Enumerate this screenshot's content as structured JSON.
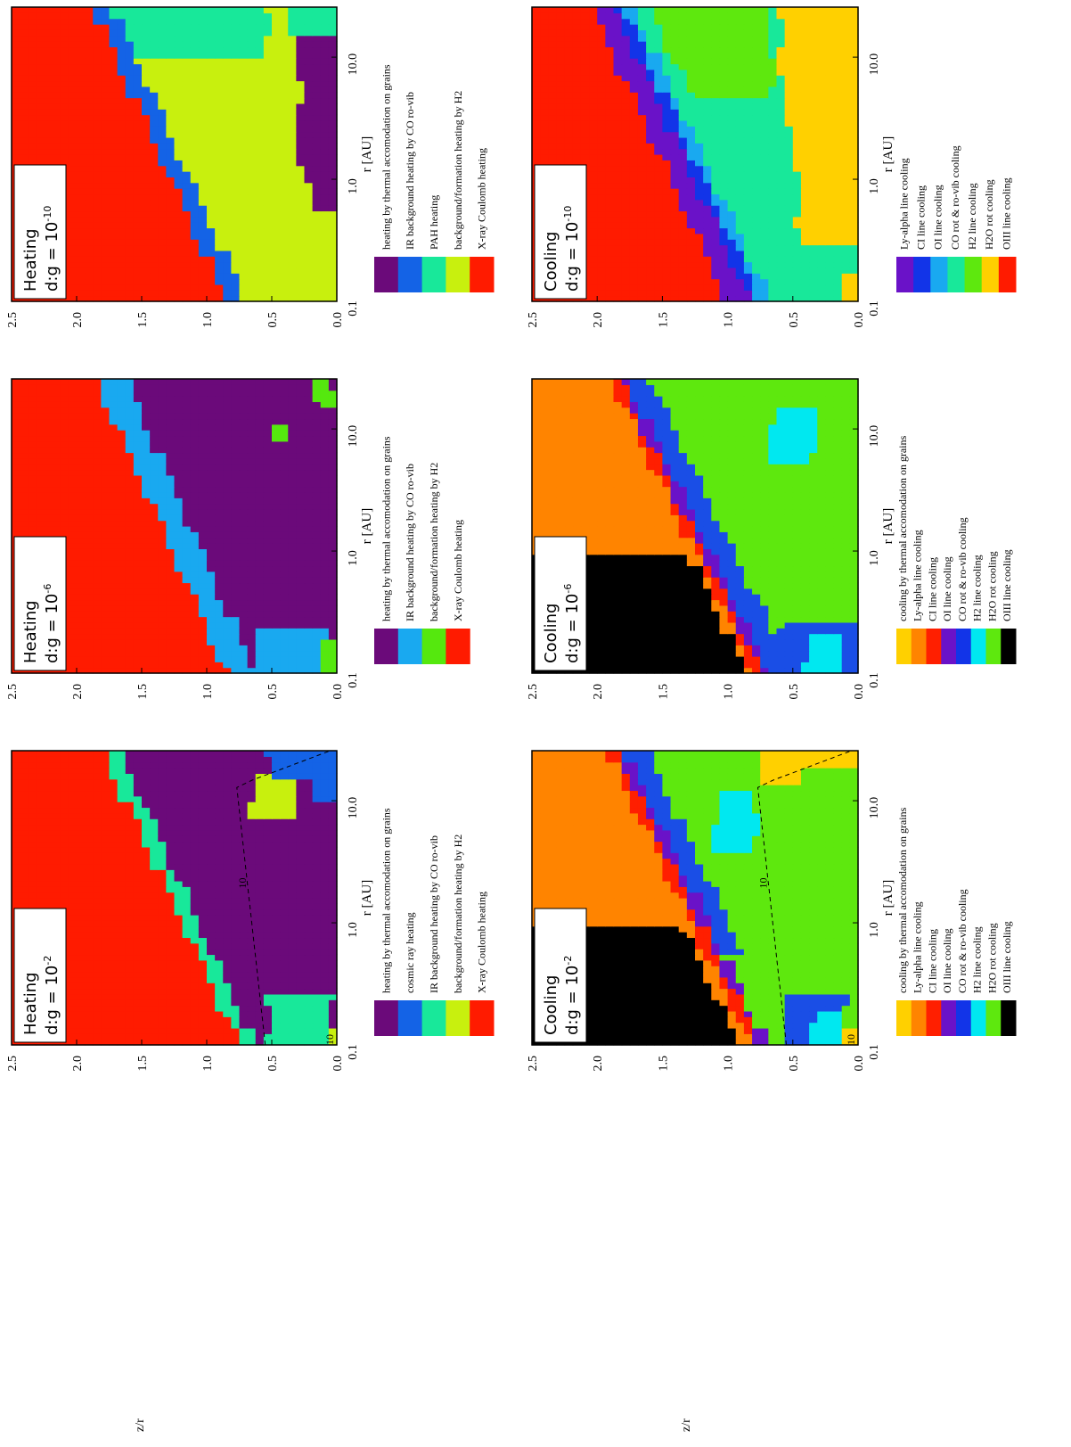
{
  "page": {
    "y_axis_label": "z/r",
    "x_axis_label": "r [AU]"
  },
  "palettes": {
    "heating": {
      "grain": "#6b0a7a",
      "cosmic": "#1463e6",
      "ir": "#18e89a",
      "bg": "#c8f00e",
      "xray": "#ff1b00",
      "irb": "#19a9f0",
      "bgg": "#55e80e"
    },
    "cooling": {
      "grain": "#ffd000",
      "lya": "#ff8400",
      "ci": "#ff1f00",
      "oi": "#6a12c8",
      "co": "#1234e8",
      "h2": "#00e8f0",
      "h2o": "#5ee80e",
      "oiii": "#000000",
      "cob": "#1a4ee6"
    }
  },
  "panels": [
    {
      "id": "heat-1e-2",
      "title_line1": "Heating",
      "title_line2": "d:g = 10",
      "exponent": "-2",
      "y_ticks": [
        "2.5",
        "2.0",
        "1.5",
        "1.0",
        "0.5",
        "0.0"
      ],
      "x_ticks": [
        "0.1",
        "1.0",
        "10.0"
      ],
      "contour_label": "10",
      "contour_label2": "10",
      "legend": [
        {
          "color": "#6b0a7a",
          "label": "heating by thermal accomodation on grains"
        },
        {
          "color": "#1463e6",
          "label": "cosmic ray heating"
        },
        {
          "color": "#18e89a",
          "label": "IR background heating by CO ro-vib"
        },
        {
          "color": "#c8f00e",
          "label": "background/formation heating by H2"
        },
        {
          "color": "#ff1b00",
          "label": "X-ray Coulomb heating"
        }
      ]
    },
    {
      "id": "heat-1e-6",
      "title_line1": "Heating",
      "title_line2": "d:g = 10",
      "exponent": "-6",
      "y_ticks": [
        "2.5",
        "2.0",
        "1.5",
        "1.0",
        "0.5",
        "0.0"
      ],
      "x_ticks": [
        "0.1",
        "1.0",
        "10.0"
      ],
      "legend": [
        {
          "color": "#6b0a7a",
          "label": "heating by thermal accomodation on grains"
        },
        {
          "color": "#19a9f0",
          "label": "IR background heating by CO ro-vib"
        },
        {
          "color": "#55e80e",
          "label": "background/formation heating by H2"
        },
        {
          "color": "#ff1b00",
          "label": "X-ray Coulomb heating"
        }
      ]
    },
    {
      "id": "heat-1e-10",
      "title_line1": "Heating",
      "title_line2": "d:g = 10",
      "exponent": "-10",
      "y_ticks": [
        "2.5",
        "2.0",
        "1.5",
        "1.0",
        "0.5",
        "0.0"
      ],
      "x_ticks": [
        "0.1",
        "1.0",
        "10.0"
      ],
      "legend": [
        {
          "color": "#6b0a7a",
          "label": "heating by thermal accomodation on grains"
        },
        {
          "color": "#1463e6",
          "label": "IR background heating by CO ro-vib"
        },
        {
          "color": "#18e89a",
          "label": "PAH heating"
        },
        {
          "color": "#c8f00e",
          "label": "background/formation heating by H2"
        },
        {
          "color": "#ff1b00",
          "label": "X-ray Coulomb heating"
        }
      ]
    },
    {
      "id": "cool-1e-2",
      "title_line1": "Cooling",
      "title_line2": "d:g = 10",
      "exponent": "-2",
      "y_ticks": [
        "2.5",
        "2.0",
        "1.5",
        "1.0",
        "0.5",
        "0.0"
      ],
      "x_ticks": [
        "0.1",
        "1.0",
        "10.0"
      ],
      "contour_label": "10",
      "contour_label2": "10",
      "legend": [
        {
          "color": "#ffd000",
          "label": "cooling by thermal accomodation on grains"
        },
        {
          "color": "#ff8400",
          "label": "Ly-alpha line cooling"
        },
        {
          "color": "#ff1f00",
          "label": "CI line cooling"
        },
        {
          "color": "#6a12c8",
          "label": "OI line cooling"
        },
        {
          "color": "#1234e8",
          "label": "CO rot & ro-vib cooling"
        },
        {
          "color": "#00e8f0",
          "label": "H2 line cooling"
        },
        {
          "color": "#5ee80e",
          "label": "H2O rot cooling"
        },
        {
          "color": "#000000",
          "label": "OIII line cooling"
        }
      ]
    },
    {
      "id": "cool-1e-6",
      "title_line1": "Cooling",
      "title_line2": "d:g = 10",
      "exponent": "-6",
      "y_ticks": [
        "2.5",
        "2.0",
        "1.5",
        "1.0",
        "0.5",
        "0.0"
      ],
      "x_ticks": [
        "0.1",
        "1.0",
        "10.0"
      ],
      "legend": [
        {
          "color": "#ffd000",
          "label": "cooling by thermal accomodation on grains"
        },
        {
          "color": "#ff8400",
          "label": "Ly-alpha line cooling"
        },
        {
          "color": "#ff1f00",
          "label": "CI line cooling"
        },
        {
          "color": "#6a12c8",
          "label": "OI line cooling"
        },
        {
          "color": "#1234e8",
          "label": "CO rot & ro-vib cooling"
        },
        {
          "color": "#00e8f0",
          "label": "H2 line cooling"
        },
        {
          "color": "#5ee80e",
          "label": "H2O rot cooling"
        },
        {
          "color": "#000000",
          "label": "OIII line cooling"
        }
      ]
    },
    {
      "id": "cool-1e-10",
      "title_line1": "Cooling",
      "title_line2": "d:g = 10",
      "exponent": "-10",
      "y_ticks": [
        "2.5",
        "2.0",
        "1.5",
        "1.0",
        "0.5",
        "0.0"
      ],
      "x_ticks": [
        "0.1",
        "1.0",
        "10.0"
      ],
      "legend": [
        {
          "color": "#6a12c8",
          "label": "Ly-alpha line cooling"
        },
        {
          "color": "#1234e8",
          "label": "CI line cooling"
        },
        {
          "color": "#19a9f0",
          "label": "OI line cooling"
        },
        {
          "color": "#18e89a",
          "label": "CO rot & ro-vib cooling"
        },
        {
          "color": "#5ee80e",
          "label": "H2 line cooling"
        },
        {
          "color": "#ffd000",
          "label": "H2O rot cooling"
        },
        {
          "color": "#ff1b00",
          "label": "OIII line cooling"
        }
      ]
    }
  ],
  "chart_data": [
    {
      "type": "heatmap",
      "title": "Heating d:g = 10^-2",
      "xlabel": "r [AU]",
      "ylabel": "z/r",
      "x_scale": "log",
      "xlim": [
        0.1,
        40
      ],
      "ylim": [
        0.0,
        2.5
      ],
      "x_ticks": [
        0.1,
        1.0,
        10.0
      ],
      "y_ticks": [
        0.0,
        0.5,
        1.0,
        1.5,
        2.0,
        2.5
      ],
      "regions": [
        "X-ray Coulomb heating (upper layer)",
        "IR background heating by CO ro-vib (band)",
        "heating by thermal accomodation on grains (midplane)",
        "background/formation heating by H2 (patches at r>10)",
        "cosmic ray heating (outer midplane)"
      ]
    },
    {
      "type": "heatmap",
      "title": "Heating d:g = 10^-6",
      "xlabel": "r [AU]",
      "ylabel": "z/r",
      "x_scale": "log",
      "xlim": [
        0.1,
        40
      ],
      "ylim": [
        0.0,
        2.5
      ],
      "x_ticks": [
        0.1,
        1.0,
        10.0
      ],
      "y_ticks": [
        0.0,
        0.5,
        1.0,
        1.5,
        2.0,
        2.5
      ],
      "regions": [
        "X-ray Coulomb heating (upper layer)",
        "IR background heating by CO ro-vib (band)",
        "heating by thermal accomodation on grains (midplane)",
        "background/formation heating by H2 (inner patches)"
      ]
    },
    {
      "type": "heatmap",
      "title": "Heating d:g = 10^-10",
      "xlabel": "r [AU]",
      "ylabel": "z/r",
      "x_scale": "log",
      "xlim": [
        0.1,
        40
      ],
      "ylim": [
        0.0,
        2.5
      ],
      "x_ticks": [
        0.1,
        1.0,
        10.0
      ],
      "y_ticks": [
        0.0,
        0.5,
        1.0,
        1.5,
        2.0,
        2.5
      ],
      "regions": [
        "X-ray Coulomb heating (upper layer)",
        "IR background heating by CO ro-vib (band)",
        "background/formation heating by H2 (wedge)",
        "PAH heating (outer)",
        "heating by thermal accomodation on grains (outer midplane)"
      ]
    },
    {
      "type": "heatmap",
      "title": "Cooling d:g = 10^-2",
      "xlabel": "r [AU]",
      "ylabel": "z/r",
      "x_scale": "log",
      "xlim": [
        0.1,
        40
      ],
      "ylim": [
        0.0,
        2.5
      ],
      "x_ticks": [
        0.1,
        1.0,
        10.0
      ],
      "y_ticks": [
        0.0,
        0.5,
        1.0,
        1.5,
        2.0,
        2.5
      ],
      "regions": [
        "OIII line cooling (top inner)",
        "Ly-alpha line cooling",
        "CI line cooling",
        "OI line cooling",
        "CO rot & ro-vib cooling",
        "H2O rot cooling (midplane)",
        "H2 line cooling (patches)",
        "cooling by thermal accomodation on grains (outer midplane)"
      ]
    },
    {
      "type": "heatmap",
      "title": "Cooling d:g = 10^-6",
      "xlabel": "r [AU]",
      "ylabel": "z/r",
      "x_scale": "log",
      "xlim": [
        0.1,
        40
      ],
      "ylim": [
        0.0,
        2.5
      ],
      "x_ticks": [
        0.1,
        1.0,
        10.0
      ],
      "y_ticks": [
        0.0,
        0.5,
        1.0,
        1.5,
        2.0,
        2.5
      ],
      "regions": [
        "OIII line cooling (top inner)",
        "Ly-alpha line cooling",
        "CI line cooling",
        "OI line cooling",
        "CO rot & ro-vib cooling",
        "H2O rot cooling (midplane)",
        "H2 line cooling (patches)"
      ]
    },
    {
      "type": "heatmap",
      "title": "Cooling d:g = 10^-10",
      "xlabel": "r [AU]",
      "ylabel": "z/r",
      "x_scale": "log",
      "xlim": [
        0.1,
        40
      ],
      "ylim": [
        0.0,
        2.5
      ],
      "x_ticks": [
        0.1,
        1.0,
        10.0
      ],
      "y_ticks": [
        0.0,
        0.5,
        1.0,
        1.5,
        2.0,
        2.5
      ],
      "regions": [
        "OIII line cooling (upper)",
        "Ly-alpha line cooling",
        "CI line cooling",
        "OI line cooling",
        "CO rot & ro-vib cooling",
        "H2 line cooling",
        "H2O rot cooling (midplane)"
      ]
    }
  ]
}
